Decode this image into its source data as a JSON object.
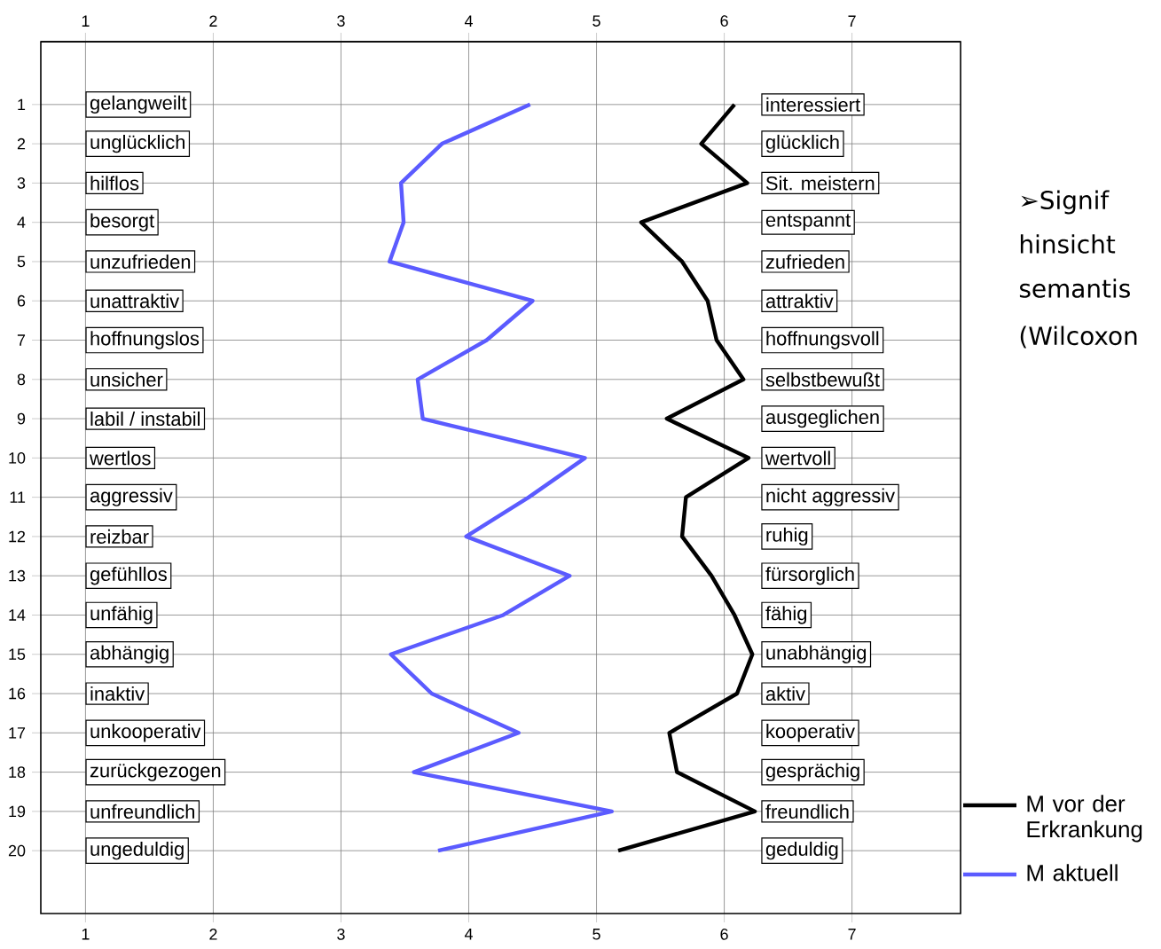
{
  "chart_data": {
    "type": "line",
    "series": [
      {
        "name": "M vor der Erkrankung",
        "color": "#000000",
        "x": [
          6.08,
          5.82,
          6.18,
          5.35,
          5.67,
          5.87,
          5.94,
          6.15,
          5.55,
          6.19,
          5.7,
          5.67,
          5.9,
          6.08,
          6.22,
          6.1,
          5.57,
          5.63,
          6.24,
          5.17
        ],
        "values": [
          1,
          2,
          3,
          4,
          5,
          6,
          7,
          8,
          9,
          10,
          11,
          12,
          13,
          14,
          15,
          16,
          17,
          18,
          19,
          20
        ]
      },
      {
        "name": "M aktuell",
        "color": "#5b5bff",
        "x": [
          4.48,
          3.79,
          3.47,
          3.49,
          3.38,
          4.5,
          4.14,
          3.6,
          3.64,
          4.91,
          4.47,
          3.98,
          4.79,
          4.27,
          3.39,
          3.71,
          4.39,
          3.57,
          5.12,
          3.76
        ],
        "values": [
          1,
          2,
          3,
          4,
          5,
          6,
          7,
          8,
          9,
          10,
          11,
          12,
          13,
          14,
          15,
          16,
          17,
          18,
          19,
          20
        ]
      }
    ],
    "xlim": [
      0.65,
      7.85
    ],
    "xticks": [
      1,
      2,
      3,
      4,
      5,
      6,
      7
    ],
    "x2lim": [
      0.65,
      7.85
    ],
    "x2ticks": [
      1,
      2,
      3,
      4,
      5,
      6,
      7
    ],
    "ylim": [
      21.6,
      -0.6
    ],
    "yticks": [
      1,
      2,
      3,
      4,
      5,
      6,
      7,
      8,
      9,
      10,
      11,
      12,
      13,
      14,
      15,
      16,
      17,
      18,
      19,
      20
    ],
    "grid": true,
    "legend": "right",
    "marker": "none",
    "line_style": "solid",
    "annotations": [
      "gelangweilt",
      "unglücklich",
      "hilflos",
      "besorgt",
      "unzufrieden",
      "unattraktiv",
      "hoffnungslos",
      "unsicher",
      "labil / instabil",
      "wertlos",
      "aggressiv",
      "reizbar",
      "gefühllos",
      "unfähig",
      "abhängig",
      "inaktiv",
      "unkooperativ",
      "zurückgezogen",
      "unfreundlich",
      "ungeduldig",
      "interessiert",
      "glücklich",
      "Sit. meistern",
      "entspannt",
      "zufrieden",
      "attraktiv",
      "hoffnungsvoll",
      "selbstbewußt",
      "ausgeglichen",
      "wertvoll",
      "nicht aggressiv",
      "ruhig",
      "fürsorglich",
      "fähig",
      "unabhängig",
      "aktiv",
      "kooperativ",
      "gesprächig",
      "freundlich",
      "geduldig",
      "➢Signif",
      "hinsicht",
      "semantis",
      "(Wilcoxon"
    ]
  }
}
